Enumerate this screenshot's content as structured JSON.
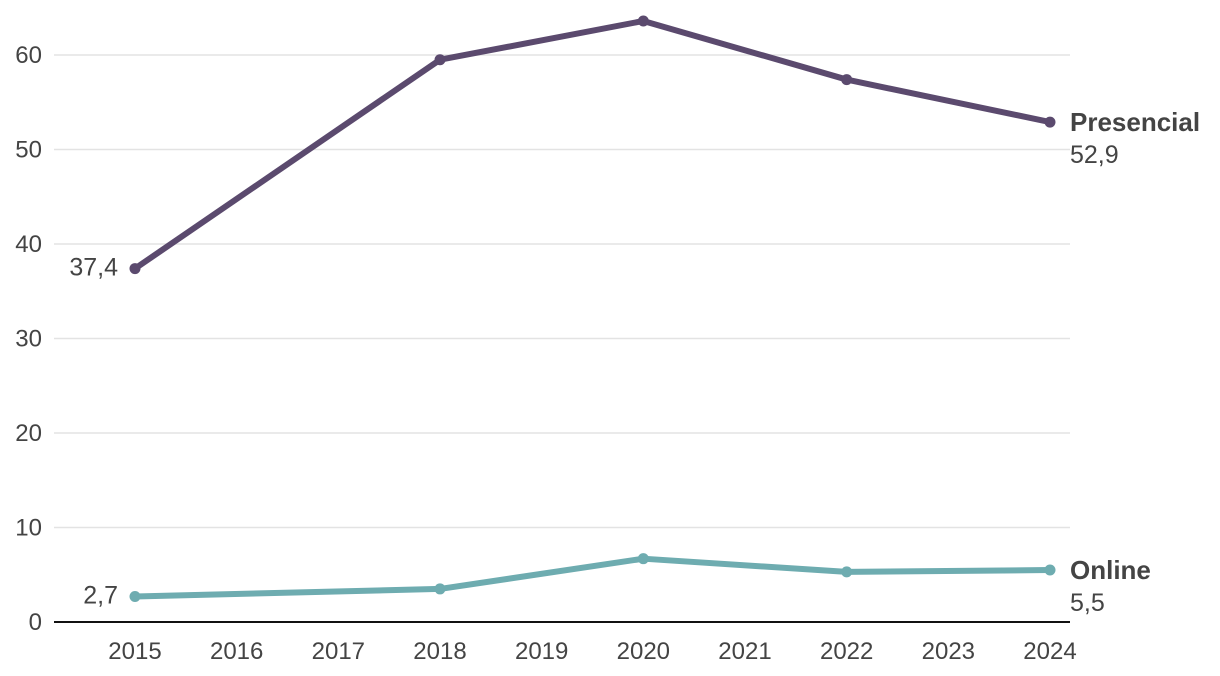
{
  "chart_data": {
    "type": "line",
    "x": [
      2015,
      2016,
      2017,
      2018,
      2019,
      2020,
      2021,
      2022,
      2023,
      2024
    ],
    "ylim": [
      0,
      65
    ],
    "y_ticks": [
      0,
      10,
      20,
      30,
      40,
      50,
      60
    ],
    "grid": true,
    "legend": "direct labels at line ends",
    "series": [
      {
        "name": "Presencial",
        "color": "#5b4a6e",
        "points": [
          {
            "x": 2015,
            "y": 37.4
          },
          {
            "x": 2018,
            "y": 59.5
          },
          {
            "x": 2020,
            "y": 63.6
          },
          {
            "x": 2022,
            "y": 57.4
          },
          {
            "x": 2024,
            "y": 52.9
          }
        ],
        "start_label": "37,4",
        "end_label": "52,9"
      },
      {
        "name": "Online",
        "color": "#6eacb0",
        "points": [
          {
            "x": 2015,
            "y": 2.7
          },
          {
            "x": 2018,
            "y": 3.5
          },
          {
            "x": 2020,
            "y": 6.7
          },
          {
            "x": 2022,
            "y": 5.3
          },
          {
            "x": 2024,
            "y": 5.5
          }
        ],
        "start_label": "2,7",
        "end_label": "5,5"
      }
    ]
  }
}
